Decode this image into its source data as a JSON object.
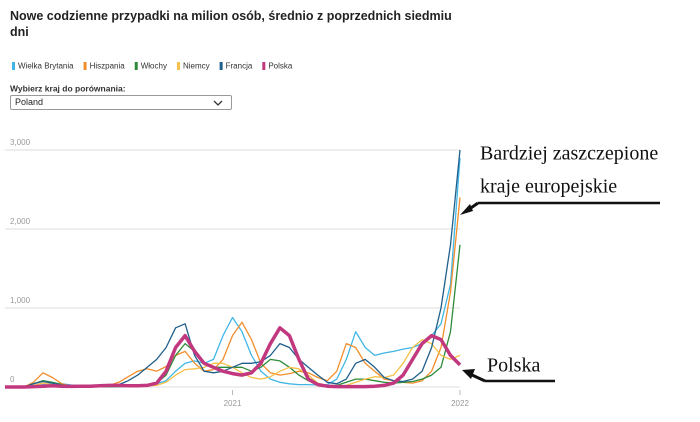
{
  "chart_data": {
    "type": "line",
    "title": "Nowe codzienne przypadki na milion osób, średnio z poprzednich siedmiu dni",
    "control": {
      "label": "Wybierz kraj do porównania:",
      "selected": "Poland"
    },
    "annotations": [
      "Bardziej zaszczepione",
      "kraje europejskie",
      "Polska"
    ],
    "categories": [
      null,
      null,
      null,
      null,
      null,
      null,
      null,
      null,
      null,
      null,
      null,
      null,
      null,
      null,
      null,
      null,
      null,
      null,
      null,
      null,
      null,
      null,
      null,
      null,
      "2021",
      null,
      null,
      null,
      null,
      null,
      null,
      null,
      null,
      null,
      null,
      null,
      null,
      null,
      null,
      null,
      null,
      null,
      null,
      null,
      null,
      null,
      null,
      null,
      "2022"
    ],
    "ylim": [
      0,
      3200
    ],
    "yticks": [
      0,
      {
        "value": 1000,
        "label": "1,000"
      },
      {
        "value": 2000,
        "label": "2,000"
      },
      {
        "value": 3000,
        "label": "3,000"
      }
    ],
    "grid": true,
    "series": [
      {
        "name": "Wielka Brytania",
        "color": "#41b6e6",
        "values": [
          0,
          0,
          0,
          5,
          30,
          50,
          40,
          25,
          15,
          10,
          5,
          5,
          5,
          5,
          10,
          20,
          40,
          80,
          200,
          300,
          330,
          300,
          350,
          650,
          880,
          700,
          400,
          200,
          100,
          60,
          40,
          30,
          30,
          25,
          30,
          100,
          350,
          700,
          500,
          400,
          430,
          450,
          480,
          500,
          550,
          650,
          800,
          1300,
          2900
        ]
      },
      {
        "name": "Hiszpania",
        "color": "#f28e2b",
        "values": [
          0,
          0,
          0,
          60,
          180,
          120,
          40,
          10,
          5,
          5,
          10,
          20,
          60,
          130,
          200,
          230,
          200,
          260,
          400,
          450,
          300,
          200,
          220,
          350,
          650,
          820,
          600,
          300,
          180,
          150,
          170,
          200,
          180,
          120,
          80,
          200,
          550,
          500,
          300,
          200,
          100,
          80,
          60,
          50,
          80,
          200,
          500,
          1200,
          2400
        ]
      },
      {
        "name": "Włochy",
        "color": "#2e8b3a",
        "values": [
          0,
          0,
          0,
          40,
          80,
          60,
          30,
          10,
          5,
          3,
          3,
          3,
          5,
          10,
          20,
          30,
          50,
          150,
          400,
          550,
          450,
          300,
          250,
          250,
          250,
          250,
          200,
          250,
          350,
          330,
          250,
          150,
          80,
          30,
          15,
          20,
          60,
          100,
          100,
          80,
          60,
          50,
          60,
          70,
          100,
          150,
          250,
          700,
          1800
        ]
      },
      {
        "name": "Niemcy",
        "color": "#f5c04a",
        "values": [
          0,
          0,
          0,
          20,
          50,
          30,
          15,
          5,
          3,
          3,
          5,
          10,
          10,
          15,
          15,
          15,
          20,
          60,
          150,
          220,
          230,
          250,
          300,
          300,
          250,
          180,
          120,
          100,
          130,
          200,
          250,
          230,
          150,
          50,
          15,
          10,
          20,
          60,
          100,
          130,
          120,
          150,
          300,
          500,
          600,
          550,
          400,
          350,
          400
        ]
      },
      {
        "name": "Francja",
        "color": "#1f5f8b",
        "values": [
          0,
          0,
          0,
          40,
          70,
          50,
          20,
          10,
          5,
          5,
          5,
          10,
          30,
          80,
          150,
          250,
          350,
          500,
          750,
          800,
          400,
          200,
          180,
          200,
          250,
          300,
          300,
          320,
          400,
          550,
          500,
          350,
          250,
          150,
          60,
          40,
          100,
          300,
          350,
          250,
          120,
          80,
          70,
          100,
          200,
          500,
          1000,
          1800,
          3000
        ]
      },
      {
        "name": "Polska",
        "color": "#c2387f",
        "values": [
          0,
          0,
          0,
          5,
          10,
          15,
          10,
          8,
          10,
          10,
          15,
          20,
          20,
          15,
          15,
          20,
          50,
          200,
          500,
          650,
          450,
          300,
          250,
          200,
          170,
          150,
          180,
          300,
          550,
          750,
          650,
          350,
          100,
          30,
          10,
          5,
          5,
          5,
          5,
          10,
          20,
          50,
          150,
          350,
          550,
          650,
          600,
          400,
          280
        ]
      }
    ]
  }
}
